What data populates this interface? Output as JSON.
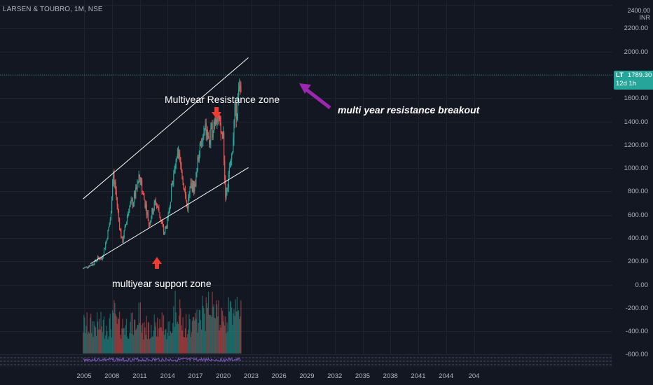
{
  "header": {
    "symbol_line": "LARSEN & TOUBRO, 1M, NSE",
    "top_price_label": "2400.00",
    "currency": "INR"
  },
  "price_tag": {
    "ticker": "LT",
    "price": "1789.30",
    "countdown": "12d 1h"
  },
  "colors": {
    "background": "#131722",
    "up": "#26a69a",
    "down": "#ef5350",
    "channel": "#ffffff",
    "arrow_red": "#ef3b34",
    "arrow_purple": "#9c27b0",
    "rsi": "#7e57c2"
  },
  "chart_data": {
    "type": "candlestick",
    "title": "LARSEN & TOUBRO, 1M, NSE",
    "y_axis_labels": [
      "2400.00",
      "2200.00",
      "2000.00",
      "1800.00",
      "1600.00",
      "1400.00",
      "1200.00",
      "1000.00",
      "800.00",
      "600.00",
      "400.00",
      "200.00",
      "0.00",
      "-200.00",
      "-400.00",
      "-600.00"
    ],
    "x_axis_labels": [
      "2005",
      "2008",
      "2011",
      "2014",
      "2017",
      "2020",
      "2023",
      "2026",
      "2029",
      "2032",
      "2035",
      "2038",
      "2041",
      "2044",
      "204"
    ],
    "ylim": [
      0,
      2400
    ],
    "last_price": 1789.3,
    "price_path": [
      [
        2004.9,
        180
      ],
      [
        2005.5,
        200
      ],
      [
        2006.0,
        220
      ],
      [
        2006.5,
        270
      ],
      [
        2006.9,
        260
      ],
      [
        2007.4,
        420
      ],
      [
        2007.9,
        640
      ],
      [
        2008.1,
        1040
      ],
      [
        2008.4,
        850
      ],
      [
        2008.8,
        560
      ],
      [
        2009.1,
        400
      ],
      [
        2009.4,
        520
      ],
      [
        2009.8,
        700
      ],
      [
        2010.3,
        760
      ],
      [
        2010.8,
        900
      ],
      [
        2011.0,
        980
      ],
      [
        2011.3,
        830
      ],
      [
        2011.7,
        700
      ],
      [
        2012.0,
        560
      ],
      [
        2012.3,
        660
      ],
      [
        2012.7,
        760
      ],
      [
        2013.1,
        660
      ],
      [
        2013.6,
        480
      ],
      [
        2014.0,
        580
      ],
      [
        2014.4,
        860
      ],
      [
        2014.8,
        1040
      ],
      [
        2015.2,
        1150
      ],
      [
        2015.5,
        1020
      ],
      [
        2016.1,
        700
      ],
      [
        2016.5,
        900
      ],
      [
        2016.9,
        880
      ],
      [
        2017.3,
        1150
      ],
      [
        2017.8,
        1300
      ],
      [
        2018.1,
        1380
      ],
      [
        2018.5,
        1260
      ],
      [
        2018.9,
        1420
      ],
      [
        2019.3,
        1550
      ],
      [
        2019.7,
        1350
      ],
      [
        2020.0,
        1330
      ],
      [
        2020.2,
        820
      ],
      [
        2020.5,
        920
      ],
      [
        2020.9,
        1150
      ],
      [
        2021.2,
        1480
      ],
      [
        2021.6,
        1640
      ],
      [
        2021.9,
        1789.3
      ]
    ],
    "channel_upper": [
      [
        2004.9,
        780
      ],
      [
        2022.7,
        2000
      ]
    ],
    "channel_lower": [
      [
        2005.7,
        220
      ],
      [
        2022.7,
        1050
      ]
    ],
    "volume_panel": {
      "ylim": [
        -600,
        100
      ],
      "tick_labels": [
        "0.00",
        "-200.00",
        "-400.00"
      ]
    },
    "annotations": {
      "resistance": "Multiyear Resistance zone",
      "support": "multiyear support zone",
      "breakout": "multi year resistance breakout"
    },
    "grid": true
  }
}
